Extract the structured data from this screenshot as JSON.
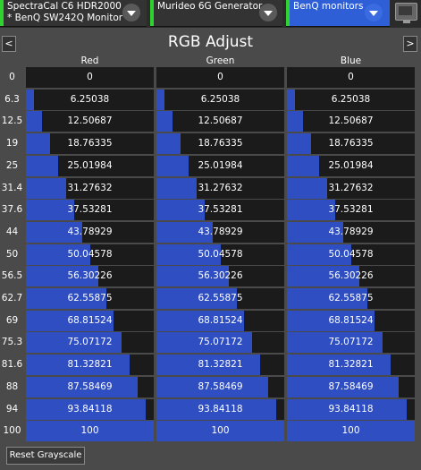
{
  "toolbar": {
    "dropdowns": [
      {
        "line1": "SpectraCal C6 HDR2000",
        "line2": "* BenQ SW242Q Monitor"
      },
      {
        "line1": "Murideo 6G Generator",
        "line2": ""
      },
      {
        "line1": "BenQ monitors",
        "line2": ""
      }
    ]
  },
  "title": "RGB Adjust",
  "nav": {
    "prev": "<",
    "next": ">"
  },
  "columns": [
    "Red",
    "Green",
    "Blue"
  ],
  "rows": [
    {
      "label": "0",
      "value": "0",
      "level": 0
    },
    {
      "label": "6.3",
      "value": "6.25038",
      "level": 0.0625
    },
    {
      "label": "12.5",
      "value": "12.50687",
      "level": 0.125
    },
    {
      "label": "19",
      "value": "18.76335",
      "level": 0.188
    },
    {
      "label": "25",
      "value": "25.01984",
      "level": 0.25
    },
    {
      "label": "31.4",
      "value": "31.27632",
      "level": 0.313
    },
    {
      "label": "37.6",
      "value": "37.53281",
      "level": 0.375
    },
    {
      "label": "44",
      "value": "43.78929",
      "level": 0.438
    },
    {
      "label": "50",
      "value": "50.04578",
      "level": 0.5
    },
    {
      "label": "56.5",
      "value": "56.30226",
      "level": 0.563
    },
    {
      "label": "62.7",
      "value": "62.55875",
      "level": 0.626
    },
    {
      "label": "69",
      "value": "68.81524",
      "level": 0.688
    },
    {
      "label": "75.3",
      "value": "75.07172",
      "level": 0.751
    },
    {
      "label": "81.6",
      "value": "81.32821",
      "level": 0.813
    },
    {
      "label": "88",
      "value": "87.58469",
      "level": 0.876
    },
    {
      "label": "94",
      "value": "93.84118",
      "level": 0.938
    },
    {
      "label": "100",
      "value": "100",
      "level": 1
    }
  ],
  "reset_label": "Reset Grayscale",
  "colors": {
    "fill": "#2e4ec2",
    "cell_bg": "#1b1b1b",
    "active_indicator": "#2fd22f",
    "selected_dropdown": "#2f5fd6"
  }
}
